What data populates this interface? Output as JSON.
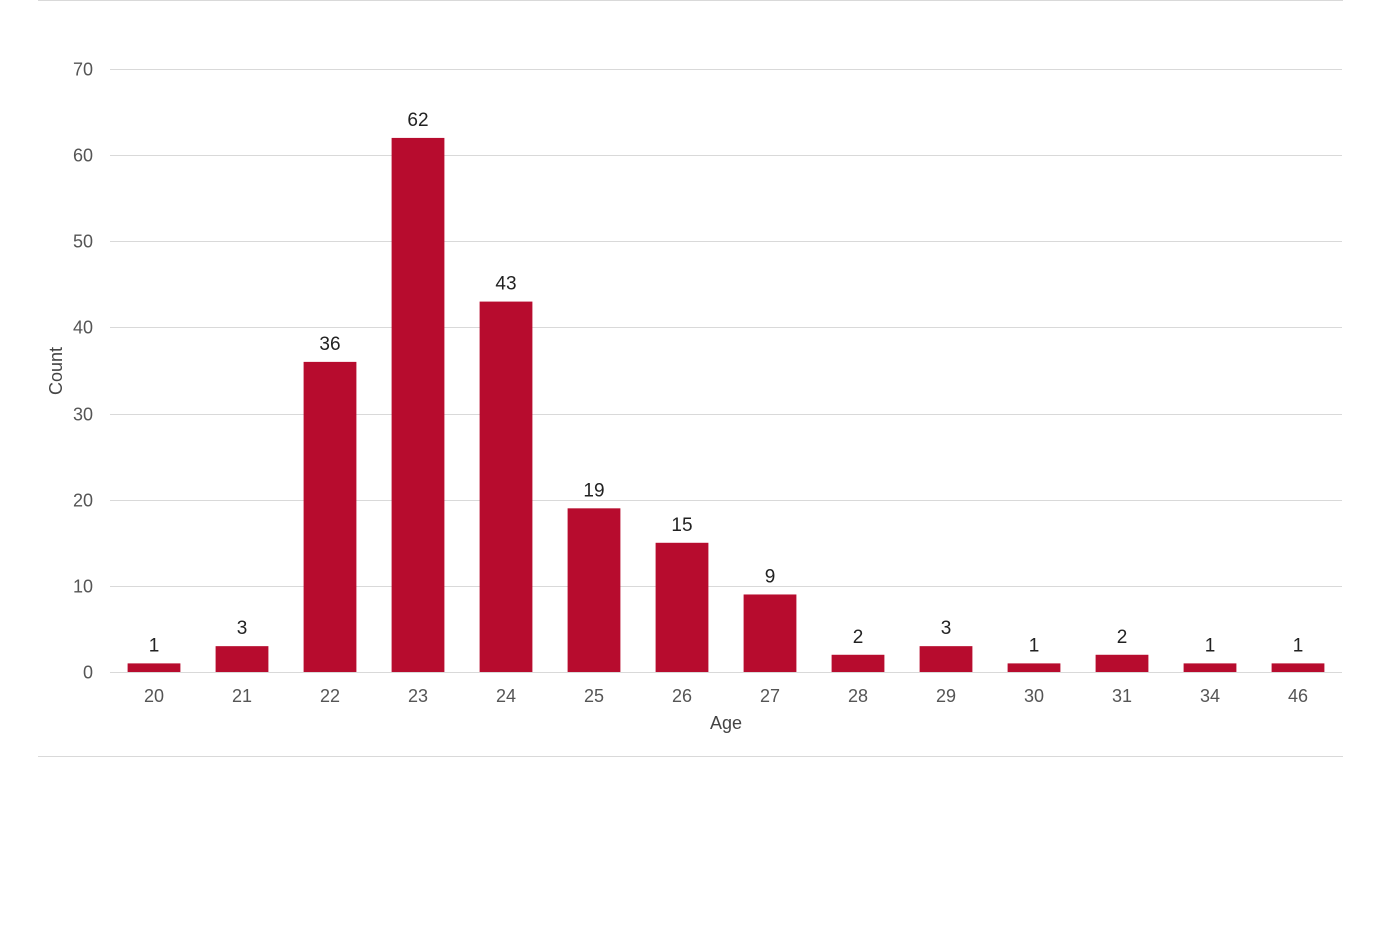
{
  "chart_data": {
    "type": "bar",
    "title": "",
    "xlabel": "Age",
    "ylabel": "Count",
    "ylim": [
      0,
      70
    ],
    "yticks": [
      0,
      10,
      20,
      30,
      40,
      50,
      60,
      70
    ],
    "grid": true,
    "legend": "none",
    "bar_color": "#b70c2e",
    "categories": [
      "20",
      "21",
      "22",
      "23",
      "24",
      "25",
      "26",
      "27",
      "28",
      "29",
      "30",
      "31",
      "34",
      "46"
    ],
    "values": [
      1,
      3,
      36,
      62,
      43,
      19,
      15,
      9,
      2,
      3,
      1,
      2,
      1,
      1
    ]
  }
}
